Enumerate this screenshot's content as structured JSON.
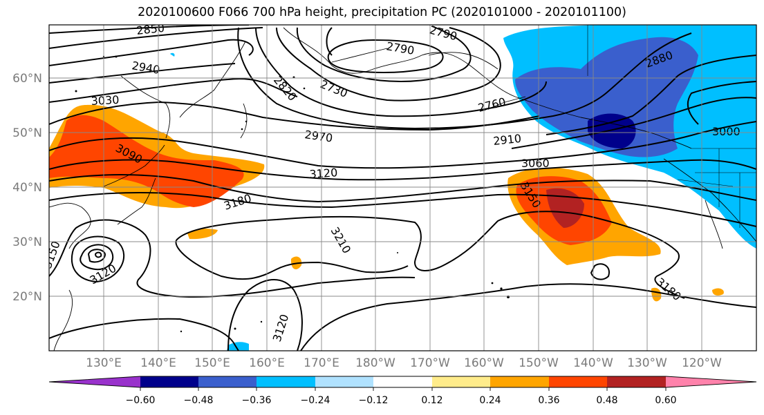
{
  "title": "2020100600 F066 700 hPa height, precipitation PC (2020101000 - 2020101100)",
  "lat_labels": [
    "60°N",
    "50°N",
    "40°N",
    "30°N",
    "20°N"
  ],
  "lon_labels": [
    "130°E",
    "140°E",
    "150°E",
    "160°E",
    "170°E",
    "180°W",
    "170°W",
    "160°W",
    "150°W",
    "140°W",
    "130°W",
    "120°W"
  ],
  "contour_labels": [
    "2850",
    "2790",
    "2790",
    "2940",
    "3030",
    "2820",
    "2730",
    "2760",
    "2880",
    "2970",
    "2910",
    "3000",
    "3090",
    "3120",
    "3060",
    "3150",
    "3180",
    "3210",
    "3150",
    "3120",
    "3120",
    "3180"
  ],
  "colorbar": {
    "colors": [
      "#9932CC",
      "#00008B",
      "#3A5FCD",
      "#00BFFF",
      "#B0E2FF",
      "#FFFFFF",
      "#FFEC8B",
      "#FFA500",
      "#FF4500",
      "#B22222",
      "#FF82AB"
    ],
    "tick_labels": [
      "−0.60",
      "−0.48",
      "−0.36",
      "−0.24",
      "−0.12",
      "0.12",
      "0.24",
      "0.36",
      "0.48",
      "0.60"
    ]
  }
}
